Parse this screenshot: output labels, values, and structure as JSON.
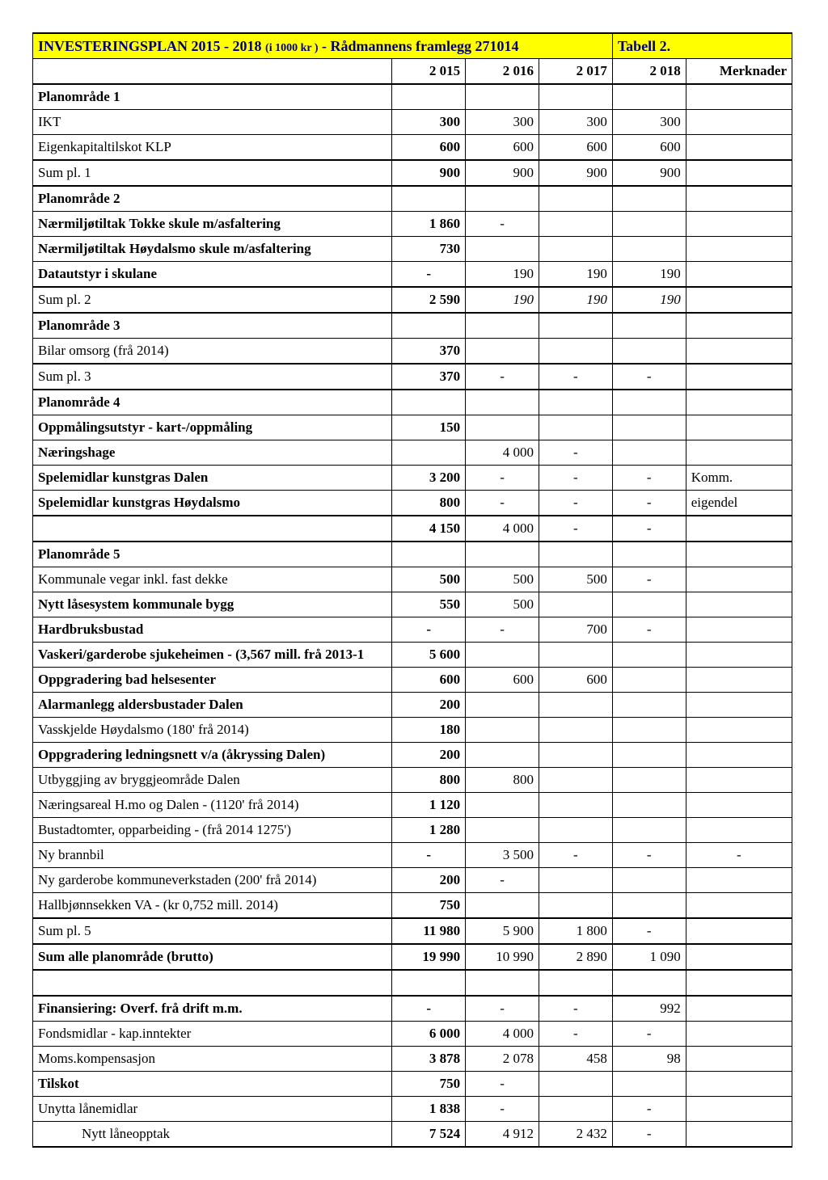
{
  "title_main": "INVESTERINGSPLAN 2015 - 2018 ",
  "title_sub": "(i 1000 kr )",
  "title_rest": " - Rådmannens framlegg 271014",
  "tabell": "Tabell 2.",
  "headers": {
    "c1": "2 015",
    "c2": "2 016",
    "c3": "2 017",
    "c4": "2 018",
    "c5": "Merknader"
  },
  "rows": [
    {
      "label": "Planområde 1",
      "bold": true
    },
    {
      "label": "IKT",
      "v": [
        "300",
        "300",
        "300",
        "300",
        ""
      ],
      "b1": true
    },
    {
      "label": "Eigenkapitaltilskot KLP",
      "v": [
        "600",
        "600",
        "600",
        "600",
        ""
      ],
      "b1": true
    },
    {
      "label": "Sum pl. 1",
      "v": [
        "900",
        "900",
        "900",
        "900",
        ""
      ],
      "b1": true,
      "thickTop": true,
      "thickBottom": true
    },
    {
      "label": "Planområde 2",
      "bold": true
    },
    {
      "label": "Nærmiljøtiltak Tokke skule m/asfaltering",
      "bold": true,
      "v": [
        "1 860",
        "-",
        "",
        "",
        ""
      ],
      "b1": true
    },
    {
      "label": "Nærmiljøtiltak Høydalsmo skule m/asfaltering",
      "bold": true,
      "v": [
        "730",
        "",
        "",
        "",
        ""
      ],
      "b1": true
    },
    {
      "label": "Datautstyr i skulane",
      "bold": true,
      "v": [
        "-",
        "190",
        "190",
        "190",
        ""
      ],
      "b1": true
    },
    {
      "label": "Sum pl. 2",
      "v": [
        "2 590",
        "190",
        "190",
        "190",
        ""
      ],
      "b1": true,
      "italic234": true,
      "thickTop": true,
      "thickBottom": true
    },
    {
      "label": "Planområde 3",
      "bold": true
    },
    {
      "label": "Bilar omsorg (frå 2014)",
      "v": [
        "370",
        "",
        "",
        "",
        ""
      ],
      "b1": true
    },
    {
      "label": "Sum pl. 3",
      "v": [
        "370",
        "-",
        "-",
        "-",
        ""
      ],
      "b1": true,
      "thickTop": true,
      "thickBottom": true
    },
    {
      "label": "Planområde 4",
      "bold": true
    },
    {
      "label": "Oppmålingsutstyr - kart-/oppmåling",
      "bold": true,
      "v": [
        "150",
        "",
        "",
        "",
        ""
      ],
      "b1": true
    },
    {
      "label": "Næringshage",
      "bold": true,
      "v": [
        "",
        "4 000",
        "-",
        "",
        ""
      ]
    },
    {
      "label": "Spelemidlar kunstgras Dalen",
      "bold": true,
      "v": [
        "3 200",
        "-",
        "-",
        "-",
        "Komm."
      ],
      "b1": true
    },
    {
      "label": "Spelemidlar kunstgras Høydalsmo",
      "bold": true,
      "v": [
        "800",
        "-",
        "-",
        "-",
        "eigendel"
      ],
      "b1": true
    },
    {
      "label": "",
      "v": [
        "4 150",
        "4 000",
        "-",
        "-",
        ""
      ],
      "b1": true,
      "thickTop": true,
      "thickBottom": true
    },
    {
      "label": "Planområde 5",
      "bold": true
    },
    {
      "label": "Kommunale vegar inkl. fast dekke",
      "v": [
        "500",
        "500",
        "500",
        "-",
        ""
      ],
      "b1": true
    },
    {
      "label": "Nytt låsesystem kommunale bygg",
      "bold": true,
      "v": [
        "550",
        "500",
        "",
        "",
        ""
      ],
      "b1": true
    },
    {
      "label": "Hardbruksbustad",
      "bold": true,
      "v": [
        "-",
        "-",
        "700",
        "-",
        ""
      ],
      "b1": true
    },
    {
      "label": "Vaskeri/garderobe sjukeheimen - (3,567 mill. frå 2013-1",
      "bold": true,
      "v": [
        "5 600",
        "",
        "",
        "",
        ""
      ],
      "b1": true
    },
    {
      "label": "Oppgradering bad helsesenter",
      "bold": true,
      "v": [
        "600",
        "600",
        "600",
        "",
        ""
      ],
      "b1": true
    },
    {
      "label": "Alarmanlegg aldersbustader Dalen",
      "bold": true,
      "v": [
        "200",
        "",
        "",
        "",
        ""
      ],
      "b1": true
    },
    {
      "label": "Vasskjelde Høydalsmo (180' frå 2014)",
      "v": [
        "180",
        "",
        "",
        "",
        ""
      ],
      "b1": true
    },
    {
      "label": "Oppgradering ledningsnett v/a (åkryssing Dalen)",
      "bold": true,
      "v": [
        "200",
        "",
        "",
        "",
        ""
      ],
      "b1": true
    },
    {
      "label": "Utbyggjing av bryggjeområde Dalen",
      "v": [
        "800",
        "800",
        "",
        "",
        ""
      ],
      "b1": true
    },
    {
      "label": "Næringsareal H.mo og Dalen - (1120' frå 2014)",
      "v": [
        "1 120",
        "",
        "",
        "",
        ""
      ],
      "b1": true
    },
    {
      "label": "Bustadtomter, opparbeiding - (frå 2014 1275')",
      "v": [
        "1 280",
        "",
        "",
        "",
        ""
      ],
      "b1": true
    },
    {
      "label": "Ny brannbil",
      "v": [
        "-",
        "3 500",
        "-",
        "-",
        "-"
      ],
      "b1": true
    },
    {
      "label": "Ny garderobe kommuneverkstaden (200' frå 2014)",
      "v": [
        "200",
        "-",
        "",
        "",
        ""
      ],
      "b1": true
    },
    {
      "label": "Hallbjønnsekken VA - (kr 0,752 mill. 2014)",
      "v": [
        "750",
        "",
        "",
        "",
        ""
      ],
      "b1": true
    },
    {
      "label": "Sum pl. 5",
      "v": [
        "11 980",
        "5 900",
        "1 800",
        "-",
        ""
      ],
      "b1": true,
      "thickTop": true,
      "thickBottom": true
    },
    {
      "label": "Sum alle planområde (brutto)",
      "bold": true,
      "v": [
        "19 990",
        "10 990",
        "2 890",
        "1 090",
        ""
      ],
      "b1": true,
      "thickBottom": true
    },
    {
      "label": "",
      "v": [
        "",
        "",
        "",
        "",
        ""
      ]
    },
    {
      "label": "Finansiering: Overf. frå drift m.m.",
      "bold": true,
      "v": [
        "-",
        "-",
        "-",
        "992",
        ""
      ],
      "b1": true,
      "thickTop": true
    },
    {
      "label": "Fondsmidlar - kap.inntekter",
      "v": [
        "6 000",
        "4 000",
        "-",
        "-",
        ""
      ],
      "b1": true
    },
    {
      "label": "Moms.kompensasjon",
      "v": [
        "3 878",
        "2 078",
        "458",
        "98",
        ""
      ],
      "b1": true
    },
    {
      "label": "Tilskot",
      "bold": true,
      "v": [
        "750",
        "-",
        "",
        "",
        ""
      ],
      "b1": true
    },
    {
      "label": "Unytta lånemidlar",
      "v": [
        "1 838",
        "-",
        "",
        "-",
        ""
      ],
      "b1": true
    },
    {
      "label": "Nytt låneopptak",
      "indent": true,
      "v": [
        "7 524",
        "4 912",
        "2 432",
        "-",
        ""
      ],
      "b1": true,
      "thickBottom": true
    }
  ]
}
